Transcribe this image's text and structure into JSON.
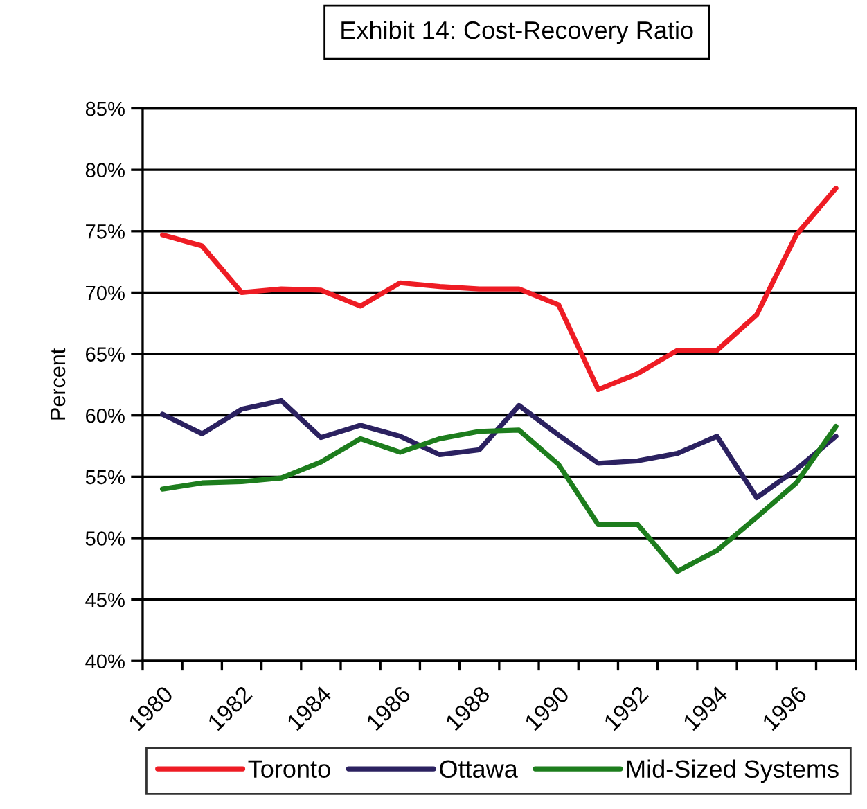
{
  "chart_data": {
    "type": "line",
    "title": "Exhibit 14: Cost-Recovery Ratio",
    "ylabel": "Percent",
    "categories": [
      "1980",
      null,
      "1982",
      null,
      "1984",
      null,
      "1986",
      null,
      "1988",
      null,
      "1990",
      null,
      "1992",
      null,
      "1994",
      null,
      "1996",
      null
    ],
    "series": [
      {
        "name": "Toronto",
        "color": "#ee1c24",
        "values": [
          74.7,
          73.8,
          70.0,
          70.3,
          70.2,
          68.9,
          70.8,
          70.5,
          70.3,
          70.3,
          69.0,
          62.1,
          63.4,
          65.3,
          65.3,
          68.2,
          74.7,
          78.5
        ]
      },
      {
        "name": "Ottawa",
        "color": "#2b2160",
        "values": [
          60.1,
          58.5,
          60.5,
          61.2,
          58.2,
          59.2,
          58.3,
          56.8,
          57.2,
          60.8,
          58.4,
          56.1,
          56.3,
          56.9,
          58.3,
          53.3,
          55.6,
          58.3
        ]
      },
      {
        "name": "Mid-Sized Systems",
        "color": "#1d7d1d",
        "values": [
          54.0,
          54.5,
          54.6,
          54.9,
          56.2,
          58.1,
          57.0,
          58.1,
          58.7,
          58.8,
          56.0,
          51.1,
          51.1,
          47.3,
          49.0,
          51.7,
          54.5,
          59.1
        ]
      }
    ],
    "ylim": [
      40,
      85
    ],
    "yticks": [
      {
        "value": 40,
        "label": "40%"
      },
      {
        "value": 45,
        "label": "45%"
      },
      {
        "value": 50,
        "label": "50%"
      },
      {
        "value": 55,
        "label": "55%"
      },
      {
        "value": 60,
        "label": "60%"
      },
      {
        "value": 65,
        "label": "65%"
      },
      {
        "value": 70,
        "label": "70%"
      },
      {
        "value": 75,
        "label": "75%"
      },
      {
        "value": 80,
        "label": "80%"
      },
      {
        "value": 85,
        "label": "85%"
      }
    ],
    "grid": "y",
    "legend": "bottom",
    "marker": "none",
    "line_style": "solid"
  }
}
